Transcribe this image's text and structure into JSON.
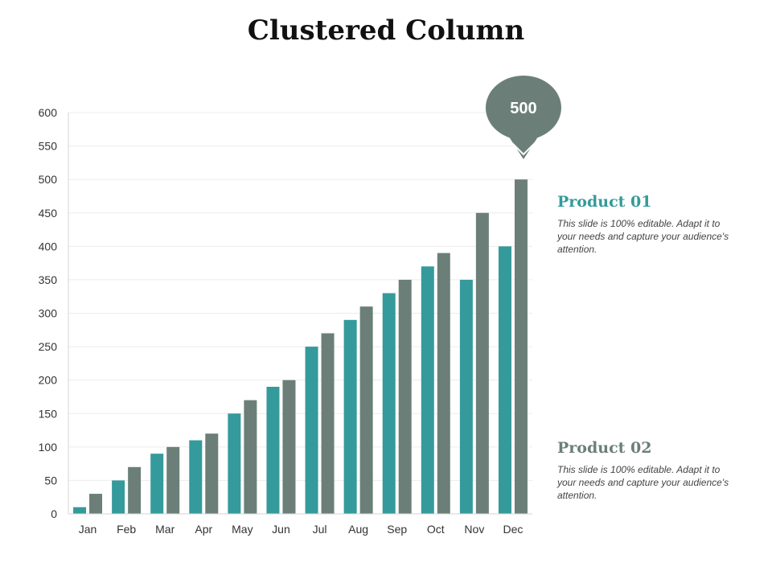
{
  "title": "Clustered Column",
  "chart_data": {
    "type": "bar",
    "title": "Clustered Column",
    "categories": [
      "Jan",
      "Feb",
      "Mar",
      "Apr",
      "May",
      "Jun",
      "Jul",
      "Aug",
      "Sep",
      "Oct",
      "Nov",
      "Dec"
    ],
    "series": [
      {
        "name": "Product 01",
        "values": [
          10,
          50,
          90,
          110,
          150,
          190,
          250,
          290,
          330,
          370,
          350,
          400
        ]
      },
      {
        "name": "Product 02",
        "values": [
          30,
          70,
          100,
          120,
          170,
          200,
          270,
          310,
          350,
          390,
          450,
          500
        ]
      }
    ],
    "ylim": [
      0,
      600
    ],
    "yticks": [
      0,
      50,
      100,
      150,
      200,
      250,
      300,
      350,
      400,
      450,
      500,
      550,
      600
    ],
    "grid": true,
    "callout": {
      "label": "500",
      "category": "Dec",
      "series": 1,
      "value": 500
    },
    "colors": [
      "#359a9b",
      "#6b7f78"
    ]
  },
  "legend": {
    "product1": {
      "title": "Product 01",
      "text": "This slide is 100% editable. Adapt it to your needs and capture your audience's attention.",
      "color": "#359a9b"
    },
    "product2": {
      "title": "Product 02",
      "text": "This slide is 100% editable. Adapt it to your needs and capture your audience's attention.",
      "color": "#6b7f78"
    }
  }
}
